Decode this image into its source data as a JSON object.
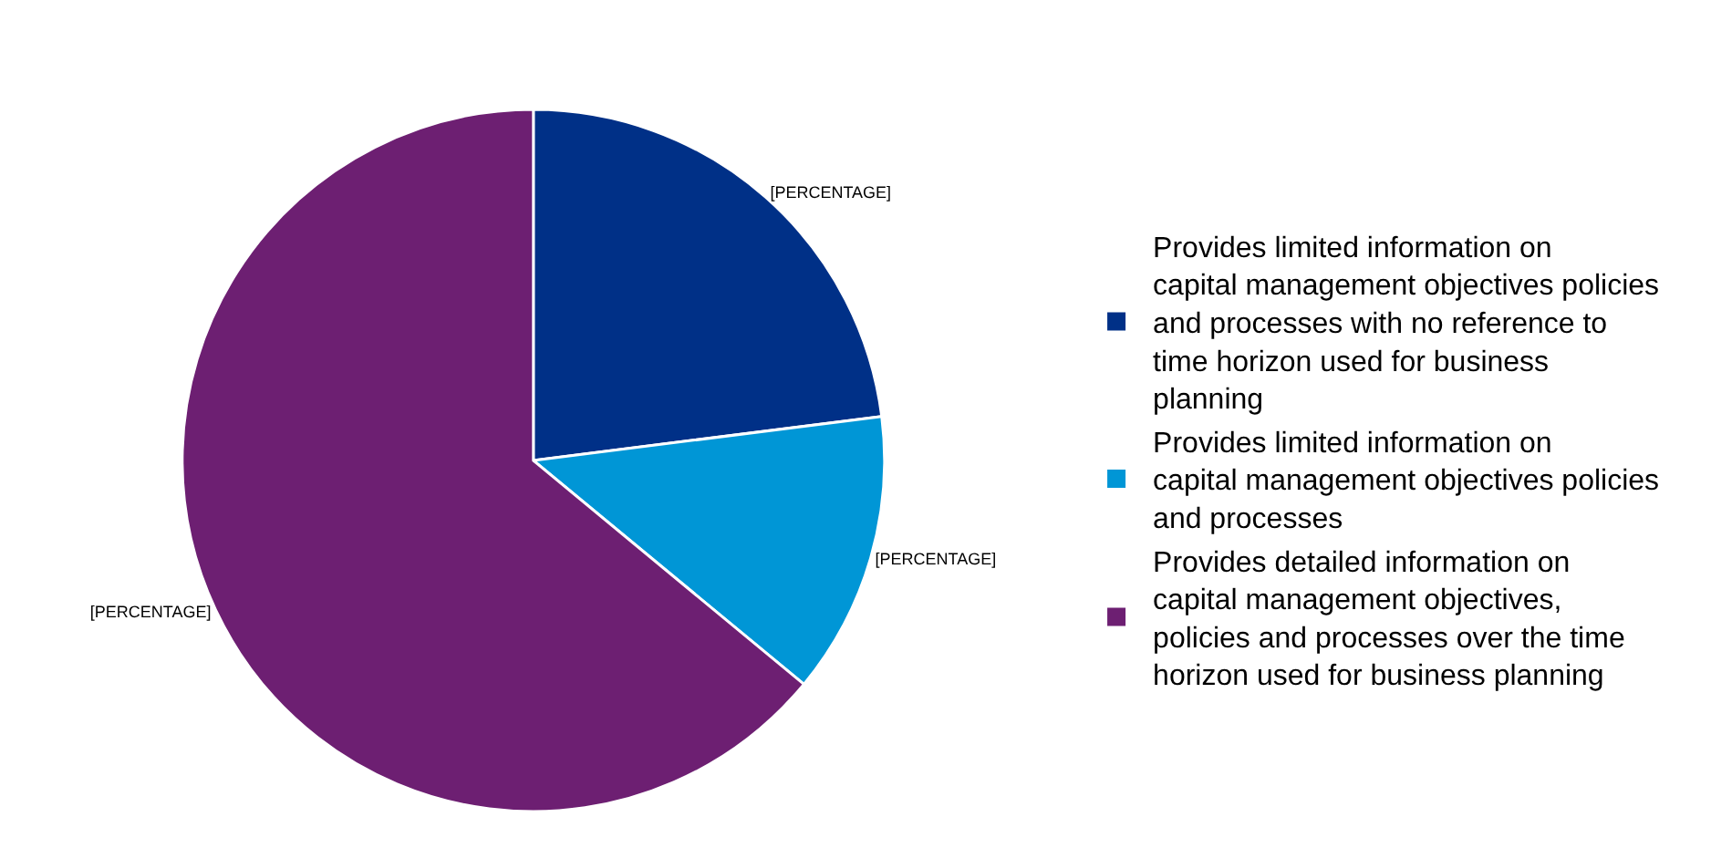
{
  "chart_data": {
    "type": "pie",
    "categories": [
      "Provides limited information on capital management objectives policies and processes with no reference to time horizon used for business planning",
      "Provides limited information on capital management objectives policies and processes",
      "Provides detailed information on capital management objectives, policies and processes over the time horizon used for business planning"
    ],
    "values": [
      23,
      13,
      64
    ],
    "colors": [
      "#003087",
      "#0096d6",
      "#6d1f72"
    ],
    "value_labels": [
      "[PERCENTAGE]",
      "[PERCENTAGE]",
      "[PERCENTAGE]"
    ],
    "legend": "right"
  }
}
